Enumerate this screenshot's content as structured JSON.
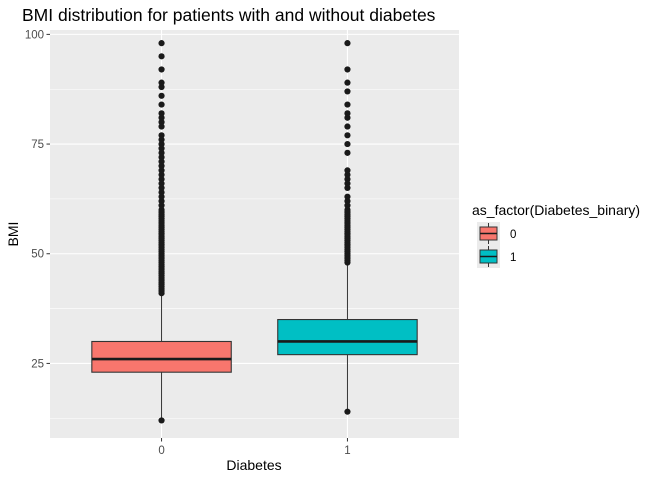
{
  "chart_data": {
    "type": "boxplot",
    "title": "BMI distribution for patients with and without diabetes",
    "xlabel": "Diabetes",
    "ylabel": "BMI",
    "ylim": [
      8,
      101
    ],
    "yticks": [
      25,
      50,
      75,
      100
    ],
    "categories": [
      "0",
      "1"
    ],
    "grid": true,
    "legend": {
      "title": "as_factor(Diabetes_binary)",
      "position": "right",
      "entries": [
        {
          "label": "0",
          "color": "#F8766D"
        },
        {
          "label": "1",
          "color": "#00BFC4"
        }
      ]
    },
    "series": [
      {
        "name": "0",
        "color": "#F8766D",
        "q1": 23,
        "median": 26,
        "q3": 30,
        "whisker_low": 12,
        "whisker_high": 40.5,
        "outliers": [
          12,
          41,
          41.5,
          42,
          42.5,
          43,
          43.5,
          44,
          44.5,
          45,
          45.5,
          46,
          46.5,
          47,
          47.5,
          48,
          48.5,
          49,
          49.5,
          50,
          50.5,
          51,
          51.5,
          52,
          52.5,
          53,
          53.5,
          54,
          54.5,
          55,
          55.5,
          56,
          56.5,
          57,
          57.5,
          58,
          58.5,
          59,
          59.5,
          60,
          61,
          62,
          63,
          64,
          65,
          66,
          67,
          68,
          69,
          70,
          71,
          72,
          73,
          74,
          75,
          76,
          77,
          79,
          80,
          81,
          82,
          84,
          86,
          88,
          89,
          92,
          95,
          98
        ]
      },
      {
        "name": "1",
        "color": "#00BFC4",
        "q1": 27,
        "median": 30,
        "q3": 35,
        "whisker_low": 14,
        "whisker_high": 47.5,
        "outliers": [
          14,
          48,
          48.5,
          49,
          49.5,
          50,
          50.5,
          51,
          51.5,
          52,
          52.5,
          53,
          53.5,
          54,
          54.5,
          55,
          55.5,
          56,
          56.5,
          57,
          57.5,
          58,
          58.5,
          59,
          59.5,
          60,
          61,
          62,
          63,
          65,
          66,
          67,
          68,
          69,
          73,
          75,
          77,
          79,
          81,
          82,
          84,
          87,
          89,
          92,
          98
        ]
      }
    ]
  }
}
